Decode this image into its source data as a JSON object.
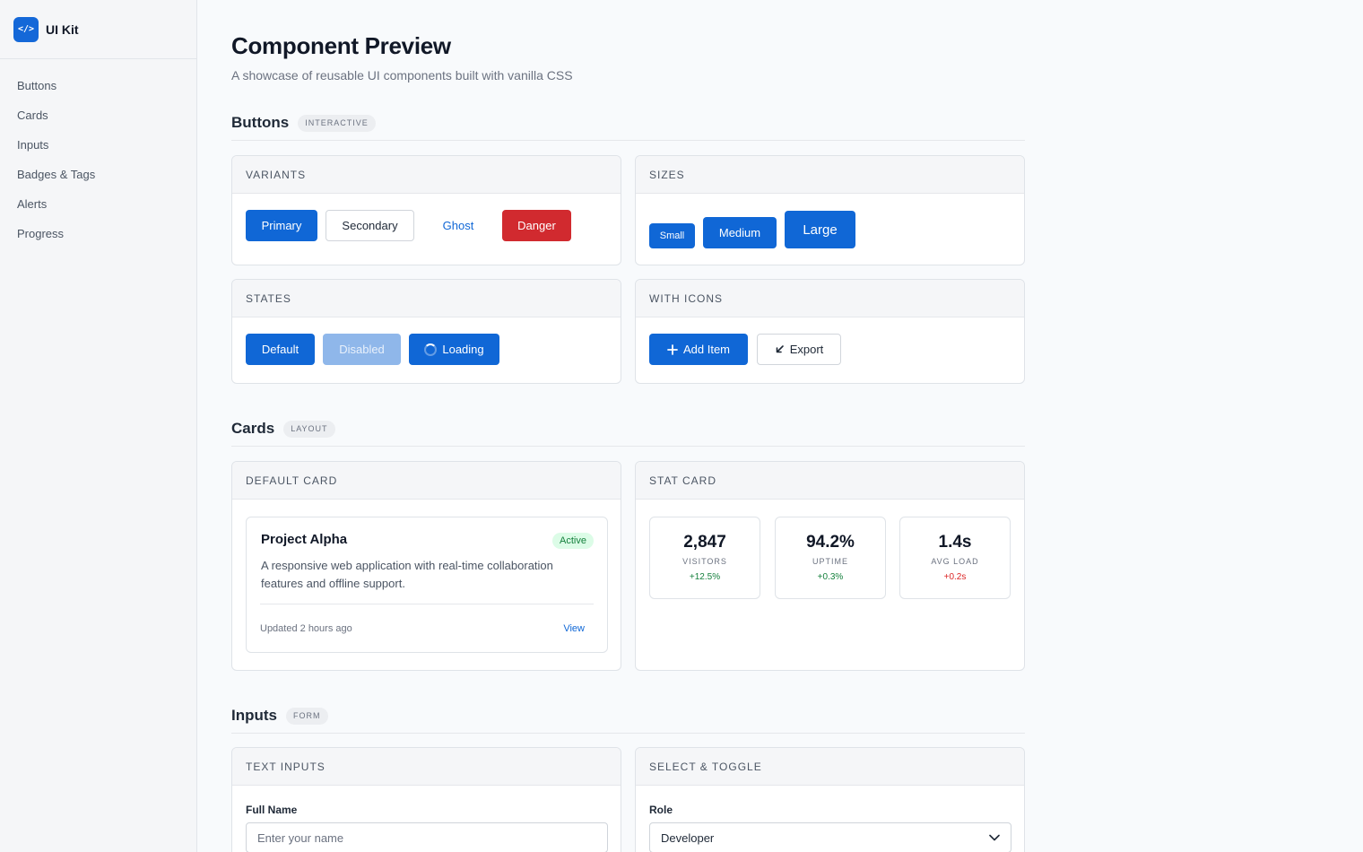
{
  "brand": {
    "logo_glyph": "</>",
    "name": "UI Kit"
  },
  "nav": {
    "items": [
      {
        "label": "Buttons"
      },
      {
        "label": "Cards"
      },
      {
        "label": "Inputs"
      },
      {
        "label": "Badges & Tags"
      },
      {
        "label": "Alerts"
      },
      {
        "label": "Progress"
      }
    ]
  },
  "page": {
    "title": "Component Preview",
    "subtitle": "A showcase of reusable UI components built with vanilla CSS"
  },
  "sections": {
    "buttons": {
      "title": "Buttons",
      "tag": "INTERACTIVE",
      "variants": {
        "header": "VARIANTS",
        "primary": "Primary",
        "secondary": "Secondary",
        "ghost": "Ghost",
        "danger": "Danger"
      },
      "sizes": {
        "header": "SIZES",
        "small": "Small",
        "medium": "Medium",
        "large": "Large"
      },
      "states": {
        "header": "STATES",
        "default": "Default",
        "disabled": "Disabled",
        "loading": "Loading"
      },
      "with_icons": {
        "header": "WITH ICONS",
        "add_item": "Add Item",
        "export": "Export",
        "add_icon": "plus-icon",
        "export_icon": "arrow-down-left-icon"
      }
    },
    "cards": {
      "title": "Cards",
      "tag": "LAYOUT",
      "default_card": {
        "header": "DEFAULT CARD",
        "project_title": "Project Alpha",
        "badge": "Active",
        "description": "A responsive web application with real-time collaboration features and offline support.",
        "updated": "Updated 2 hours ago",
        "view_link": "View"
      },
      "stat_card": {
        "header": "STAT CARD",
        "stats": [
          {
            "value": "2,847",
            "label": "VISITORS",
            "delta": "+12.5%",
            "delta_color": "#15803d"
          },
          {
            "value": "94.2%",
            "label": "UPTIME",
            "delta": "+0.3%",
            "delta_color": "#15803d"
          },
          {
            "value": "1.4s",
            "label": "AVG LOAD",
            "delta": "+0.2s",
            "delta_color": "#dc2626"
          }
        ]
      }
    },
    "inputs": {
      "title": "Inputs",
      "tag": "FORM",
      "text_inputs": {
        "header": "TEXT INPUTS",
        "full_name_label": "Full Name",
        "full_name_placeholder": "Enter your name",
        "full_name_value": ""
      },
      "select_toggle": {
        "header": "SELECT & TOGGLE",
        "role_label": "Role",
        "role_value": "Developer"
      }
    }
  },
  "colors": {
    "primary": "#1067d6",
    "danger": "#d12a2f",
    "success": "#15803d",
    "error": "#dc2626"
  }
}
